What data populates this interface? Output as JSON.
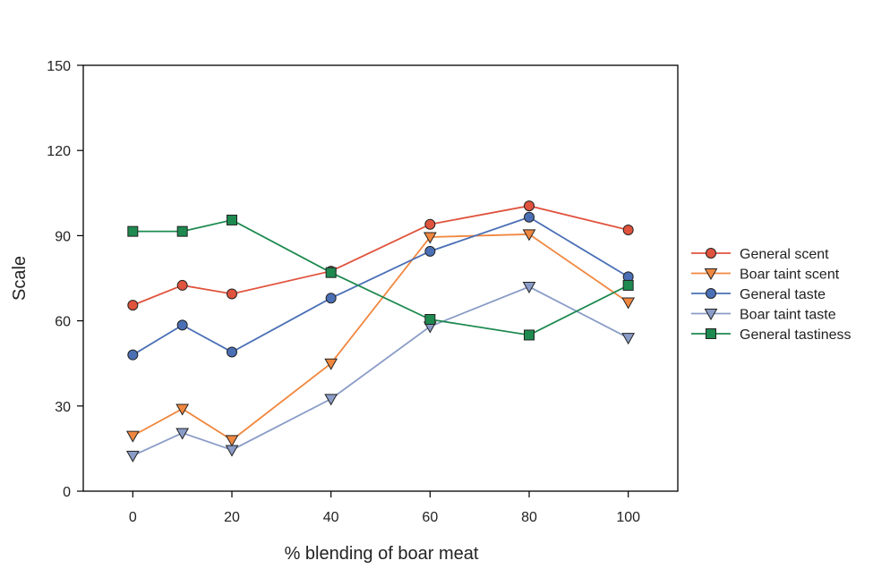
{
  "chart_data": {
    "type": "line",
    "title": "",
    "xlabel": "% blending of boar meat",
    "ylabel": "Scale",
    "x": [
      0,
      10,
      20,
      40,
      60,
      80,
      100
    ],
    "xlim": [
      -10,
      110
    ],
    "ylim": [
      0,
      150
    ],
    "xticks": [
      0,
      20,
      40,
      60,
      80,
      100
    ],
    "yticks": [
      0,
      30,
      60,
      90,
      120,
      150
    ],
    "grid": false,
    "legend_position": "right",
    "series": [
      {
        "name": "General scent",
        "marker": "circle",
        "color": "#e0533d",
        "values": [
          65.5,
          72.5,
          69.5,
          77.5,
          94,
          100.5,
          92
        ]
      },
      {
        "name": "Boar taint scent",
        "marker": "triangle-down",
        "color": "#f0873f",
        "values": [
          19.5,
          29,
          18,
          45,
          89.5,
          90.5,
          66.5
        ]
      },
      {
        "name": "General taste",
        "marker": "circle",
        "color": "#4a6fb5",
        "values": [
          48,
          58.5,
          49,
          68,
          84.5,
          96.5,
          75.5
        ]
      },
      {
        "name": "Boar taint taste",
        "marker": "triangle-down",
        "color": "#8a9cc7",
        "values": [
          12.5,
          20.5,
          14.5,
          32.5,
          58,
          72,
          54
        ]
      },
      {
        "name": "General tastiness",
        "marker": "square",
        "color": "#1e8a50",
        "values": [
          91.5,
          91.5,
          95.5,
          77,
          60.5,
          55,
          72.5
        ]
      }
    ]
  }
}
